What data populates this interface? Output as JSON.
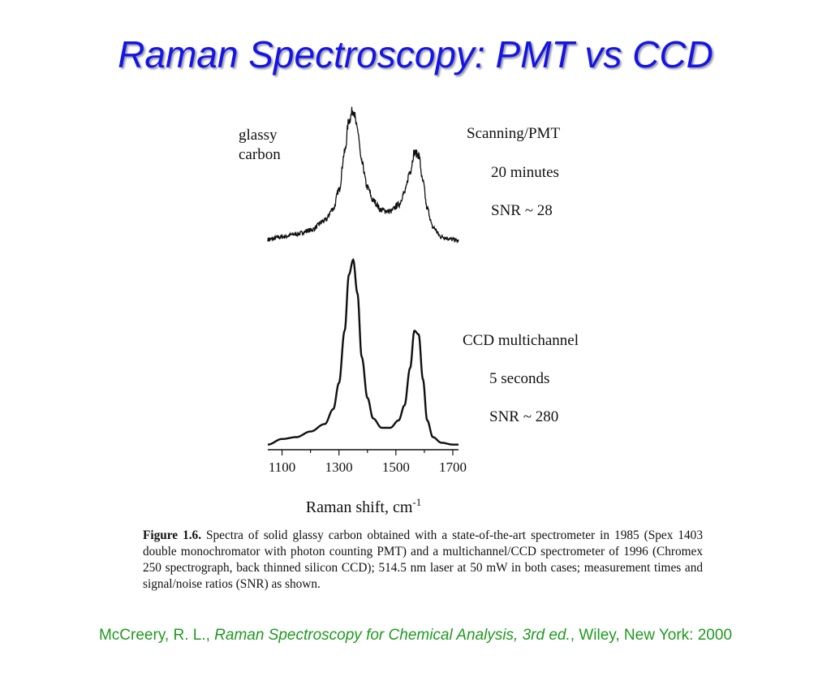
{
  "title": "Raman Spectroscopy: PMT vs CCD",
  "chart_data": {
    "type": "line",
    "xlabel": "Raman shift, cm",
    "xlabel_superscript": "-1",
    "xlim": [
      1050,
      1720
    ],
    "x_ticks": [
      "1100",
      "1300",
      "1500",
      "1700"
    ],
    "x_tick_values": [
      1100,
      1300,
      1500,
      1700
    ],
    "panels": [
      {
        "sample_label": [
          "glassy",
          "carbon"
        ],
        "annotations": [
          "Scanning/PMT",
          "20 minutes",
          "SNR ~ 28"
        ],
        "noisy": true,
        "series": [
          {
            "x": [
              1050,
              1100,
              1150,
              1200,
              1250,
              1280,
              1300,
              1320,
              1335,
              1350,
              1365,
              1380,
              1400,
              1420,
              1450,
              1480,
              1510,
              1530,
              1550,
              1565,
              1580,
              1595,
              1610,
              1630,
              1660,
              1700,
              1720
            ],
            "y": [
              0.03,
              0.05,
              0.07,
              0.1,
              0.17,
              0.26,
              0.4,
              0.68,
              0.92,
              1.0,
              0.85,
              0.6,
              0.42,
              0.32,
              0.25,
              0.24,
              0.29,
              0.38,
              0.54,
              0.68,
              0.66,
              0.46,
              0.26,
              0.12,
              0.05,
              0.03,
              0.02
            ]
          }
        ]
      },
      {
        "annotations": [
          "CCD multichannel",
          "5 seconds",
          "SNR ~ 280"
        ],
        "noisy": false,
        "series": [
          {
            "x": [
              1050,
              1100,
              1150,
              1200,
              1250,
              1280,
              1300,
              1320,
              1335,
              1350,
              1365,
              1380,
              1400,
              1420,
              1450,
              1480,
              1510,
              1530,
              1550,
              1565,
              1580,
              1595,
              1610,
              1630,
              1660,
              1700,
              1720
            ],
            "y": [
              0.01,
              0.04,
              0.05,
              0.08,
              0.12,
              0.2,
              0.34,
              0.62,
              0.92,
              1.0,
              0.82,
              0.48,
              0.26,
              0.15,
              0.1,
              0.1,
              0.14,
              0.22,
              0.42,
              0.62,
              0.6,
              0.36,
              0.14,
              0.05,
              0.02,
              0.01,
              0.01
            ]
          }
        ]
      }
    ]
  },
  "caption": {
    "figure_number": "Figure 1.6.",
    "text": "Spectra of solid glassy carbon obtained with a state-of-the-art spectrometer in 1985 (Spex 1403 double monochromator with photon counting PMT) and a multichannel/CCD spectrometer of 1996 (Chromex 250 spectrograph, back thinned silicon CCD); 514.5 nm laser at 50 mW in both cases; measurement times and signal/noise ratios (SNR) as shown."
  },
  "citation": {
    "authors": "McCreery, R. L., ",
    "book": "Raman Spectroscopy for Chemical Analysis, 3rd ed.",
    "publisher": ", Wiley, New York: 2000"
  },
  "colors": {
    "title": "#1515e6",
    "citation": "#1f9a1f",
    "trace": "#111111"
  }
}
